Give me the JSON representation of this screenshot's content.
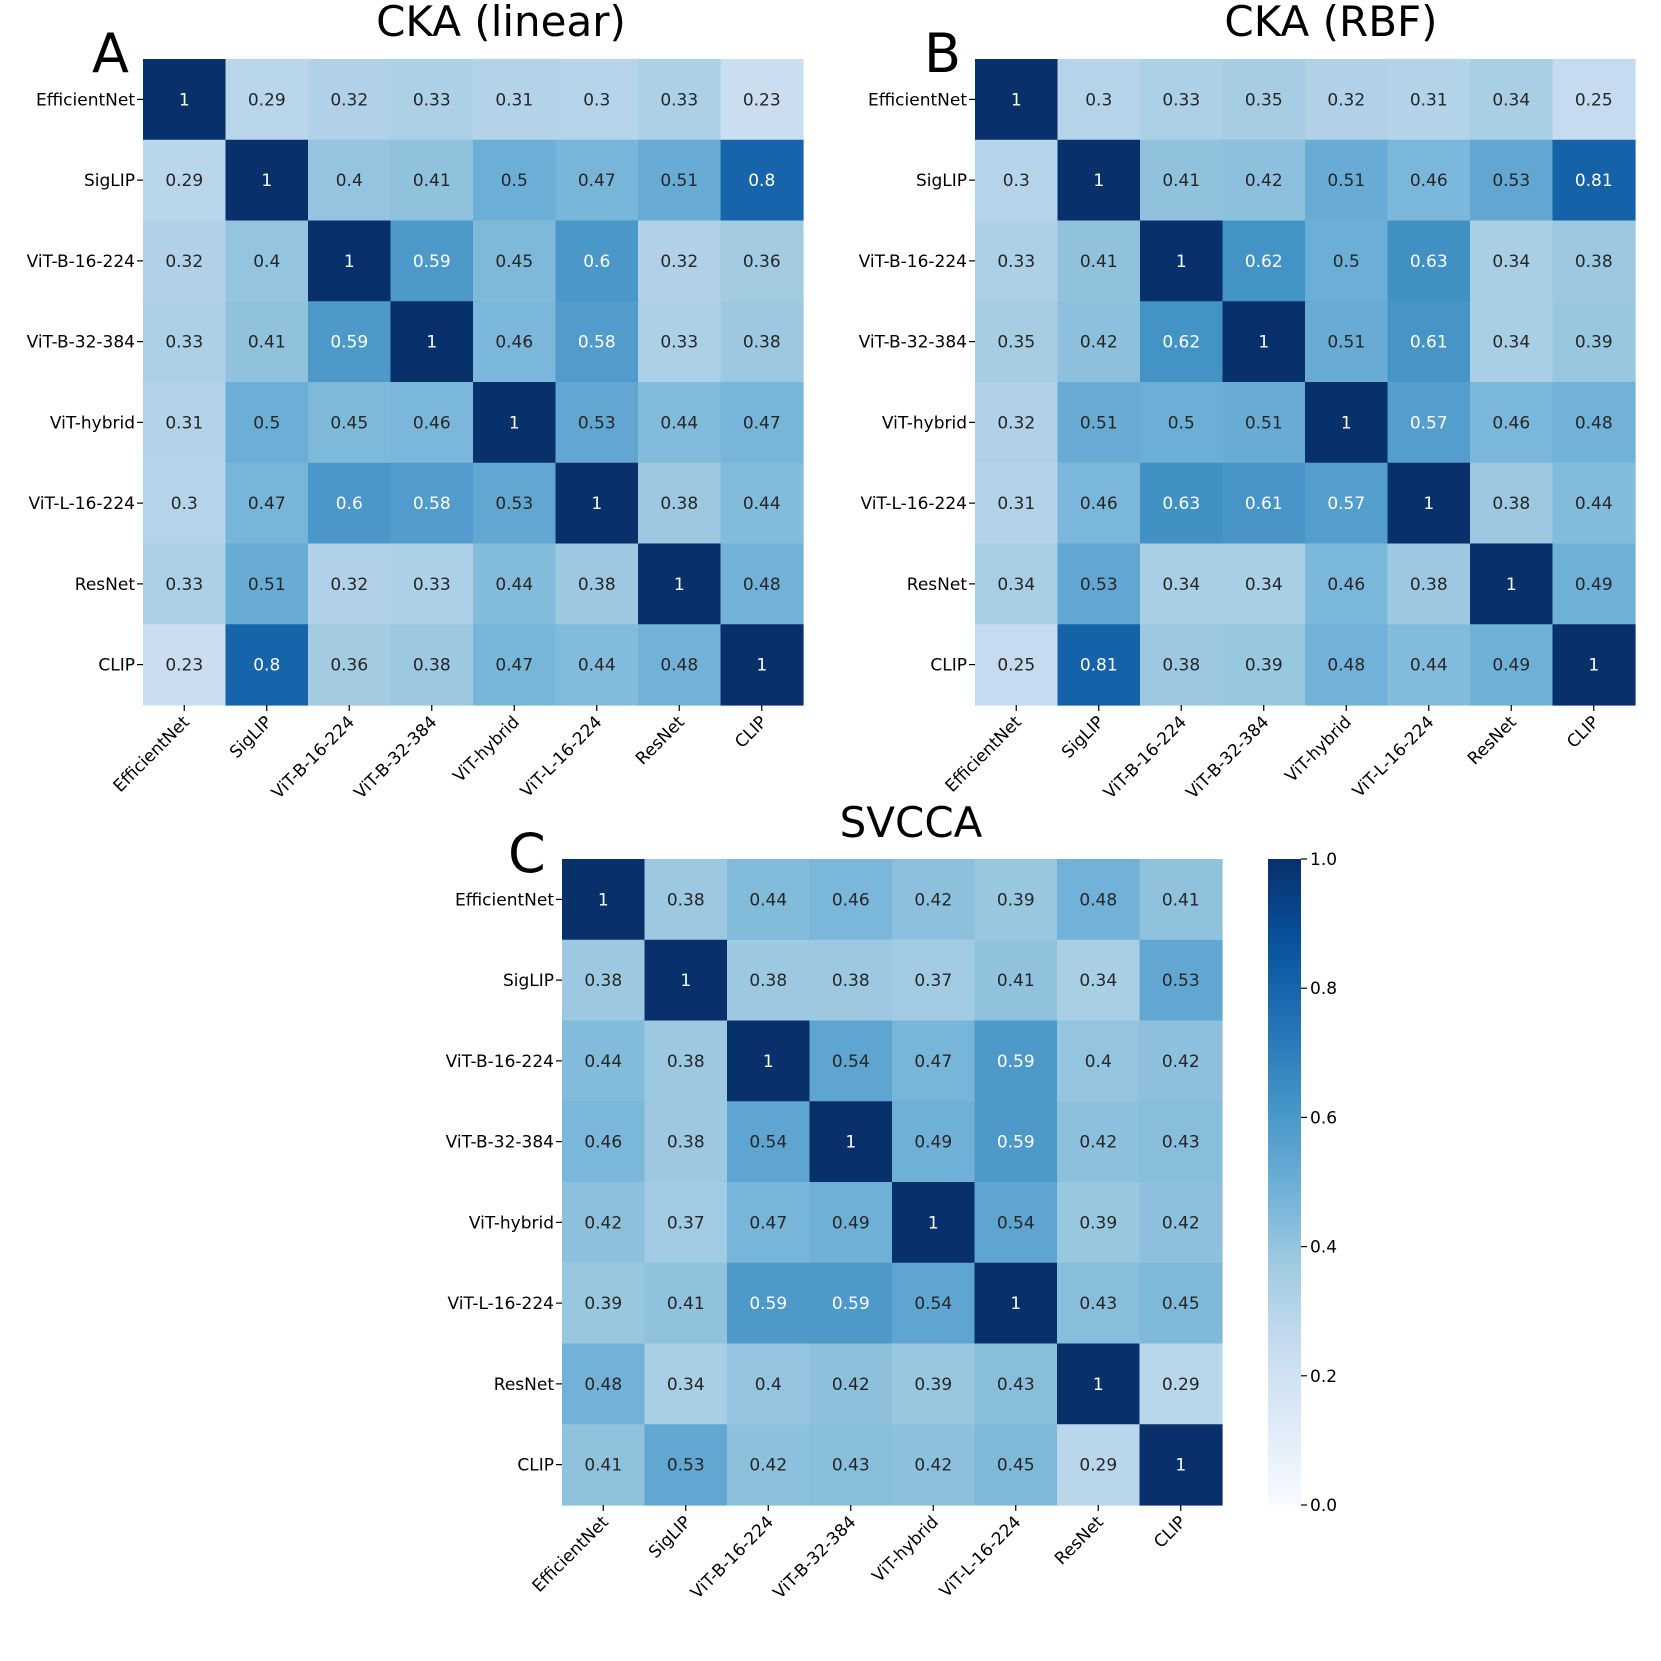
{
  "chart_data": [
    {
      "type": "heatmap",
      "panel_letter": "A",
      "title": "CKA (linear)",
      "x_labels": [
        "EfficientNet",
        "SigLIP",
        "ViT-B-16-224",
        "ViT-B-32-384",
        "ViT-hybrid",
        "ViT-L-16-224",
        "ResNet",
        "CLIP"
      ],
      "y_labels": [
        "EfficientNet",
        "SigLIP",
        "ViT-B-16-224",
        "ViT-B-32-384",
        "ViT-hybrid",
        "ViT-L-16-224",
        "ResNet",
        "CLIP"
      ],
      "values": [
        [
          1,
          0.29,
          0.32,
          0.33,
          0.31,
          0.3,
          0.33,
          0.23
        ],
        [
          0.29,
          1,
          0.4,
          0.41,
          0.5,
          0.47,
          0.51,
          0.8
        ],
        [
          0.32,
          0.4,
          1,
          0.59,
          0.45,
          0.6,
          0.32,
          0.36
        ],
        [
          0.33,
          0.41,
          0.59,
          1,
          0.46,
          0.58,
          0.33,
          0.38
        ],
        [
          0.31,
          0.5,
          0.45,
          0.46,
          1,
          0.53,
          0.44,
          0.47
        ],
        [
          0.3,
          0.47,
          0.6,
          0.58,
          0.53,
          1,
          0.38,
          0.44
        ],
        [
          0.33,
          0.51,
          0.32,
          0.33,
          0.44,
          0.38,
          1,
          0.48
        ],
        [
          0.23,
          0.8,
          0.36,
          0.38,
          0.47,
          0.44,
          0.48,
          1
        ]
      ],
      "value_labels": [
        [
          "1",
          "0.29",
          "0.32",
          "0.33",
          "0.31",
          "0.3",
          "0.33",
          "0.23"
        ],
        [
          "0.29",
          "1",
          "0.4",
          "0.41",
          "0.5",
          "0.47",
          "0.51",
          "0.8"
        ],
        [
          "0.32",
          "0.4",
          "1",
          "0.59",
          "0.45",
          "0.6",
          "0.32",
          "0.36"
        ],
        [
          "0.33",
          "0.41",
          "0.59",
          "1",
          "0.46",
          "0.58",
          "0.33",
          "0.38"
        ],
        [
          "0.31",
          "0.5",
          "0.45",
          "0.46",
          "1",
          "0.53",
          "0.44",
          "0.47"
        ],
        [
          "0.3",
          "0.47",
          "0.6",
          "0.58",
          "0.53",
          "1",
          "0.38",
          "0.44"
        ],
        [
          "0.33",
          "0.51",
          "0.32",
          "0.33",
          "0.44",
          "0.38",
          "1",
          "0.48"
        ],
        [
          "0.23",
          "0.8",
          "0.36",
          "0.38",
          "0.47",
          "0.44",
          "0.48",
          "1"
        ]
      ]
    },
    {
      "type": "heatmap",
      "panel_letter": "B",
      "title": "CKA (RBF)",
      "x_labels": [
        "EfficientNet",
        "SigLIP",
        "ViT-B-16-224",
        "ViT-B-32-384",
        "ViT-hybrid",
        "ViT-L-16-224",
        "ResNet",
        "CLIP"
      ],
      "y_labels": [
        "EfficientNet",
        "SigLIP",
        "ViT-B-16-224",
        "ViT-B-32-384",
        "ViT-hybrid",
        "ViT-L-16-224",
        "ResNet",
        "CLIP"
      ],
      "values": [
        [
          1,
          0.3,
          0.33,
          0.35,
          0.32,
          0.31,
          0.34,
          0.25
        ],
        [
          0.3,
          1,
          0.41,
          0.42,
          0.51,
          0.46,
          0.53,
          0.81
        ],
        [
          0.33,
          0.41,
          1,
          0.62,
          0.5,
          0.63,
          0.34,
          0.38
        ],
        [
          0.35,
          0.42,
          0.62,
          1,
          0.51,
          0.61,
          0.34,
          0.39
        ],
        [
          0.32,
          0.51,
          0.5,
          0.51,
          1,
          0.57,
          0.46,
          0.48
        ],
        [
          0.31,
          0.46,
          0.63,
          0.61,
          0.57,
          1,
          0.38,
          0.44
        ],
        [
          0.34,
          0.53,
          0.34,
          0.34,
          0.46,
          0.38,
          1,
          0.49
        ],
        [
          0.25,
          0.81,
          0.38,
          0.39,
          0.48,
          0.44,
          0.49,
          1
        ]
      ],
      "value_labels": [
        [
          "1",
          "0.3",
          "0.33",
          "0.35",
          "0.32",
          "0.31",
          "0.34",
          "0.25"
        ],
        [
          "0.3",
          "1",
          "0.41",
          "0.42",
          "0.51",
          "0.46",
          "0.53",
          "0.81"
        ],
        [
          "0.33",
          "0.41",
          "1",
          "0.62",
          "0.5",
          "0.63",
          "0.34",
          "0.38"
        ],
        [
          "0.35",
          "0.42",
          "0.62",
          "1",
          "0.51",
          "0.61",
          "0.34",
          "0.39"
        ],
        [
          "0.32",
          "0.51",
          "0.5",
          "0.51",
          "1",
          "0.57",
          "0.46",
          "0.48"
        ],
        [
          "0.31",
          "0.46",
          "0.63",
          "0.61",
          "0.57",
          "1",
          "0.38",
          "0.44"
        ],
        [
          "0.34",
          "0.53",
          "0.34",
          "0.34",
          "0.46",
          "0.38",
          "1",
          "0.49"
        ],
        [
          "0.25",
          "0.81",
          "0.38",
          "0.39",
          "0.48",
          "0.44",
          "0.49",
          "1"
        ]
      ]
    },
    {
      "type": "heatmap",
      "panel_letter": "C",
      "title": "SVCCA",
      "x_labels": [
        "EfficientNet",
        "SigLIP",
        "ViT-B-16-224",
        "ViT-B-32-384",
        "ViT-hybrid",
        "ViT-L-16-224",
        "ResNet",
        "CLIP"
      ],
      "y_labels": [
        "EfficientNet",
        "SigLIP",
        "ViT-B-16-224",
        "ViT-B-32-384",
        "ViT-hybrid",
        "ViT-L-16-224",
        "ResNet",
        "CLIP"
      ],
      "values": [
        [
          1,
          0.38,
          0.44,
          0.46,
          0.42,
          0.39,
          0.48,
          0.41
        ],
        [
          0.38,
          1,
          0.38,
          0.38,
          0.37,
          0.41,
          0.34,
          0.53
        ],
        [
          0.44,
          0.38,
          1,
          0.54,
          0.47,
          0.59,
          0.4,
          0.42
        ],
        [
          0.46,
          0.38,
          0.54,
          1,
          0.49,
          0.59,
          0.42,
          0.43
        ],
        [
          0.42,
          0.37,
          0.47,
          0.49,
          1,
          0.54,
          0.39,
          0.42
        ],
        [
          0.39,
          0.41,
          0.59,
          0.59,
          0.54,
          1,
          0.43,
          0.45
        ],
        [
          0.48,
          0.34,
          0.4,
          0.42,
          0.39,
          0.43,
          1,
          0.29
        ],
        [
          0.41,
          0.53,
          0.42,
          0.43,
          0.42,
          0.45,
          0.29,
          1
        ]
      ],
      "value_labels": [
        [
          "1",
          "0.38",
          "0.44",
          "0.46",
          "0.42",
          "0.39",
          "0.48",
          "0.41"
        ],
        [
          "0.38",
          "1",
          "0.38",
          "0.38",
          "0.37",
          "0.41",
          "0.34",
          "0.53"
        ],
        [
          "0.44",
          "0.38",
          "1",
          "0.54",
          "0.47",
          "0.59",
          "0.4",
          "0.42"
        ],
        [
          "0.46",
          "0.38",
          "0.54",
          "1",
          "0.49",
          "0.59",
          "0.42",
          "0.43"
        ],
        [
          "0.42",
          "0.37",
          "0.47",
          "0.49",
          "1",
          "0.54",
          "0.39",
          "0.42"
        ],
        [
          "0.39",
          "0.41",
          "0.59",
          "0.59",
          "0.54",
          "1",
          "0.43",
          "0.45"
        ],
        [
          "0.48",
          "0.34",
          "0.4",
          "0.42",
          "0.39",
          "0.43",
          "1",
          "0.29"
        ],
        [
          "0.41",
          "0.53",
          "0.42",
          "0.43",
          "0.42",
          "0.45",
          "0.29",
          "1"
        ]
      ]
    }
  ],
  "colorbar": {
    "colormap": "Blues",
    "range": [
      0,
      1
    ],
    "ticks": [
      "0.0",
      "0.2",
      "0.4",
      "0.6",
      "0.8",
      "1.0"
    ]
  }
}
